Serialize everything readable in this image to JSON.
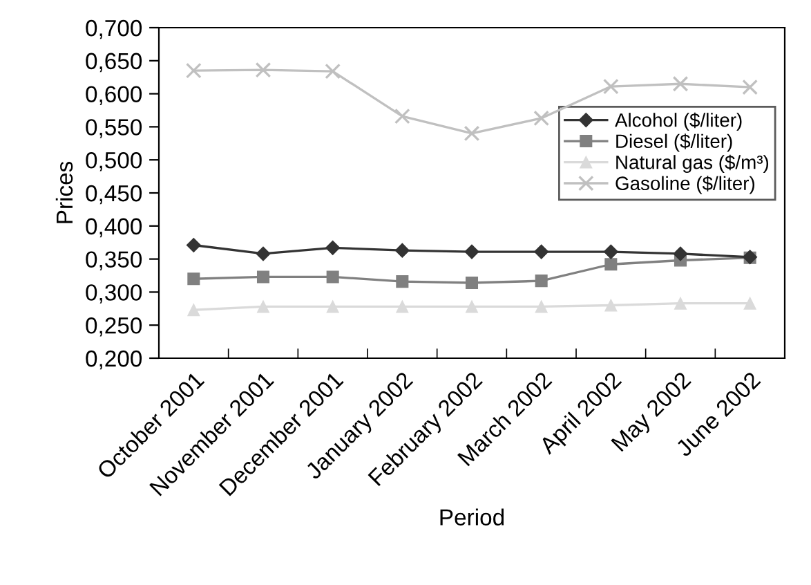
{
  "chart_data": {
    "type": "line",
    "xlabel": "Period",
    "ylabel": "Prices",
    "categories": [
      "October 2001",
      "November 2001",
      "December 2001",
      "January 2002",
      "February 2002",
      "March 2002",
      "April 2002",
      "May 2002",
      "June 2002"
    ],
    "series": [
      {
        "name": "Alcohol ($/liter)",
        "color": "#333333",
        "marker": "diamond",
        "values": [
          0.371,
          0.358,
          0.367,
          0.363,
          0.361,
          0.361,
          0.361,
          0.358,
          0.353
        ]
      },
      {
        "name": "Diesel ($/liter)",
        "color": "#808080",
        "marker": "square",
        "values": [
          0.32,
          0.323,
          0.323,
          0.316,
          0.314,
          0.317,
          0.342,
          0.348,
          0.352
        ]
      },
      {
        "name": "Natural gas ($/m³)",
        "color": "#dadada",
        "marker": "triangle",
        "values": [
          0.273,
          0.278,
          0.278,
          0.278,
          0.278,
          0.278,
          0.28,
          0.283,
          0.283
        ]
      },
      {
        "name": "Gasoline ($/liter)",
        "color": "#c0c0c0",
        "marker": "cross",
        "values": [
          0.635,
          0.636,
          0.634,
          0.566,
          0.54,
          0.563,
          0.611,
          0.615,
          0.61
        ]
      }
    ],
    "ylim": [
      0.2,
      0.7
    ],
    "yticks": [
      {
        "value": 0.2,
        "label": "0,200"
      },
      {
        "value": 0.25,
        "label": "0,250"
      },
      {
        "value": 0.3,
        "label": "0,300"
      },
      {
        "value": 0.35,
        "label": "0,350"
      },
      {
        "value": 0.4,
        "label": "0,400"
      },
      {
        "value": 0.45,
        "label": "0,450"
      },
      {
        "value": 0.5,
        "label": "0,500"
      },
      {
        "value": 0.55,
        "label": "0,550"
      },
      {
        "value": 0.6,
        "label": "0,600"
      },
      {
        "value": 0.65,
        "label": "0,650"
      },
      {
        "value": 0.7,
        "label": "0,700"
      }
    ],
    "grid": false,
    "legend": "right",
    "line_style": "solid"
  }
}
